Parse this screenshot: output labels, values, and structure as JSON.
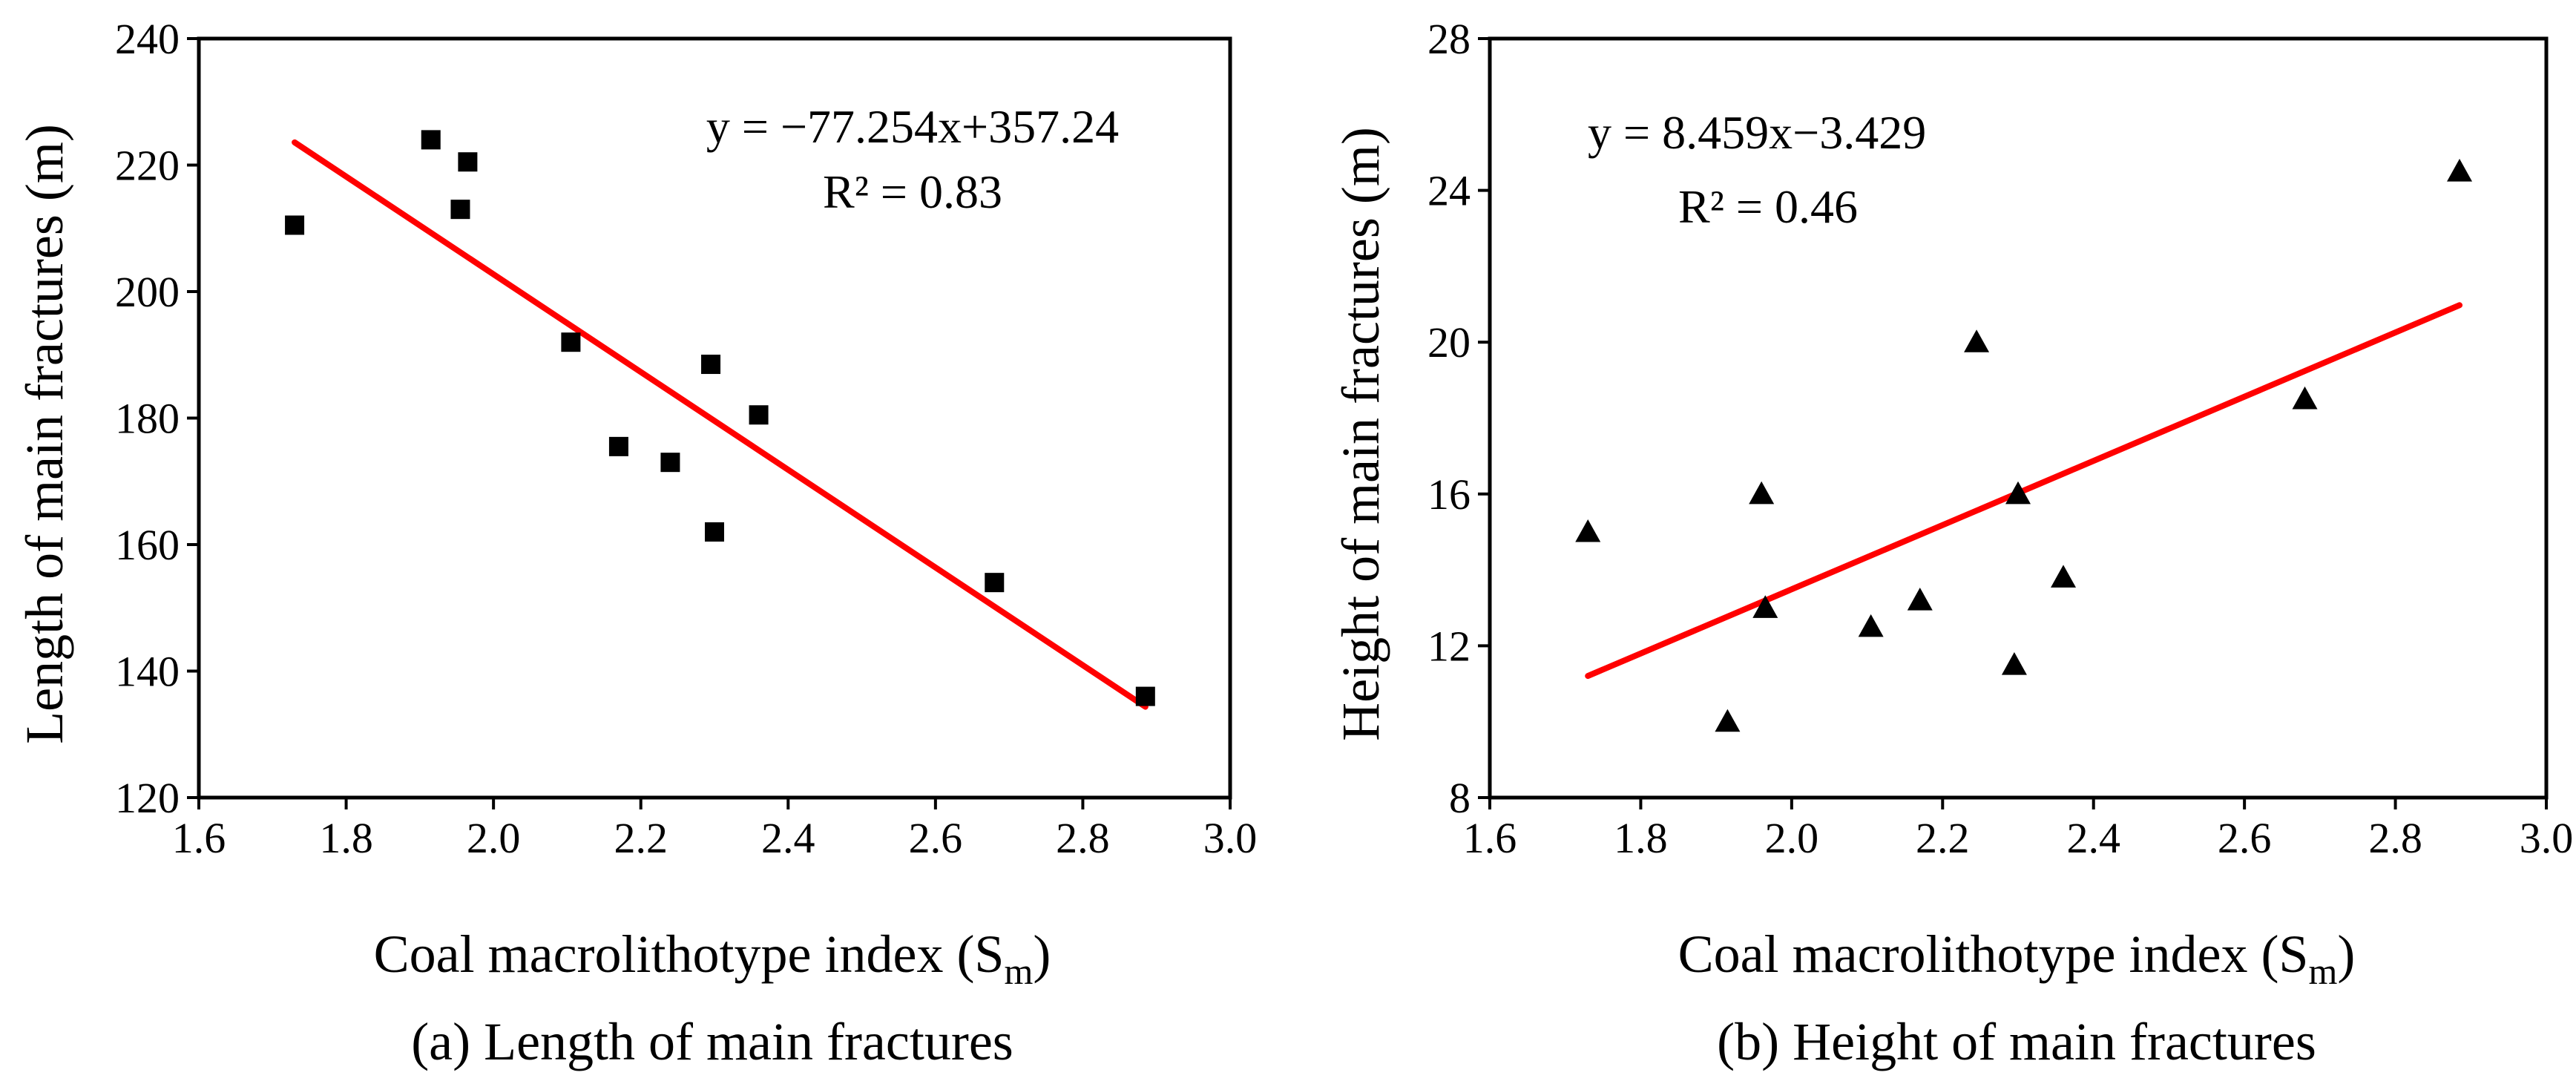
{
  "chart_data": [
    {
      "type": "scatter",
      "id": "a",
      "caption": "(a) Length of main fractures",
      "xlabel_main": "Coal macrolithotype index (S",
      "xlabel_sub": "m",
      "xlabel_close": ")",
      "ylabel": "Length of main fractures (m)",
      "xlim": [
        1.6,
        3.0
      ],
      "ylim": [
        120,
        240
      ],
      "xticks": [
        1.6,
        1.8,
        2.0,
        2.2,
        2.4,
        2.6,
        2.8,
        3.0
      ],
      "xtick_labels": [
        "1.6",
        "1.8",
        "2.0",
        "2.2",
        "2.4",
        "2.6",
        "2.8",
        "3.0"
      ],
      "yticks": [
        120,
        140,
        160,
        180,
        200,
        220,
        240
      ],
      "ytick_labels": [
        "120",
        "140",
        "160",
        "180",
        "200",
        "220",
        "240"
      ],
      "marker": "square",
      "marker_color": "#000000",
      "points": [
        {
          "x": 1.73,
          "y": 210.5
        },
        {
          "x": 1.915,
          "y": 224
        },
        {
          "x": 1.955,
          "y": 213
        },
        {
          "x": 1.965,
          "y": 220.5
        },
        {
          "x": 2.105,
          "y": 192
        },
        {
          "x": 2.17,
          "y": 175.5
        },
        {
          "x": 2.24,
          "y": 173
        },
        {
          "x": 2.295,
          "y": 188.5
        },
        {
          "x": 2.3,
          "y": 162
        },
        {
          "x": 2.36,
          "y": 180.5
        },
        {
          "x": 2.68,
          "y": 154
        },
        {
          "x": 2.885,
          "y": 136
        }
      ],
      "fit": {
        "slope": -77.254,
        "intercept": 357.24,
        "x_from": 1.73,
        "x_to": 2.885,
        "color": "#ff0000"
      },
      "equation": "y = −77.254x+357.24",
      "r2": "R² = 0.83",
      "equation_placement": "top-right"
    },
    {
      "type": "scatter",
      "id": "b",
      "caption": "(b) Height of main fractures",
      "xlabel_main": "Coal macrolithotype index (S",
      "xlabel_sub": "m",
      "xlabel_close": ")",
      "ylabel": "Height of main fractures (m)",
      "xlim": [
        1.6,
        3.0
      ],
      "ylim": [
        8,
        28
      ],
      "xticks": [
        1.6,
        1.8,
        2.0,
        2.2,
        2.4,
        2.6,
        2.8,
        3.0
      ],
      "xtick_labels": [
        "1.6",
        "1.8",
        "2.0",
        "2.2",
        "2.4",
        "2.6",
        "2.8",
        "3.0"
      ],
      "yticks": [
        8,
        12,
        16,
        20,
        24,
        28
      ],
      "ytick_labels": [
        "8",
        "12",
        "16",
        "20",
        "24",
        "28"
      ],
      "marker": "triangle",
      "marker_color": "#000000",
      "points": [
        {
          "x": 1.73,
          "y": 15.0
        },
        {
          "x": 1.915,
          "y": 10.0
        },
        {
          "x": 1.96,
          "y": 16.0
        },
        {
          "x": 1.965,
          "y": 13.0
        },
        {
          "x": 2.105,
          "y": 12.5
        },
        {
          "x": 2.17,
          "y": 13.2
        },
        {
          "x": 2.245,
          "y": 20.0
        },
        {
          "x": 2.295,
          "y": 11.5
        },
        {
          "x": 2.3,
          "y": 16.0
        },
        {
          "x": 2.36,
          "y": 13.8
        },
        {
          "x": 2.68,
          "y": 18.5
        },
        {
          "x": 2.885,
          "y": 24.5
        }
      ],
      "fit": {
        "slope": 8.459,
        "intercept": -3.429,
        "x_from": 1.73,
        "x_to": 2.885,
        "color": "#ff0000"
      },
      "equation": "y = 8.459x−3.429",
      "r2": "R² = 0.46",
      "equation_placement": "top-left"
    }
  ]
}
